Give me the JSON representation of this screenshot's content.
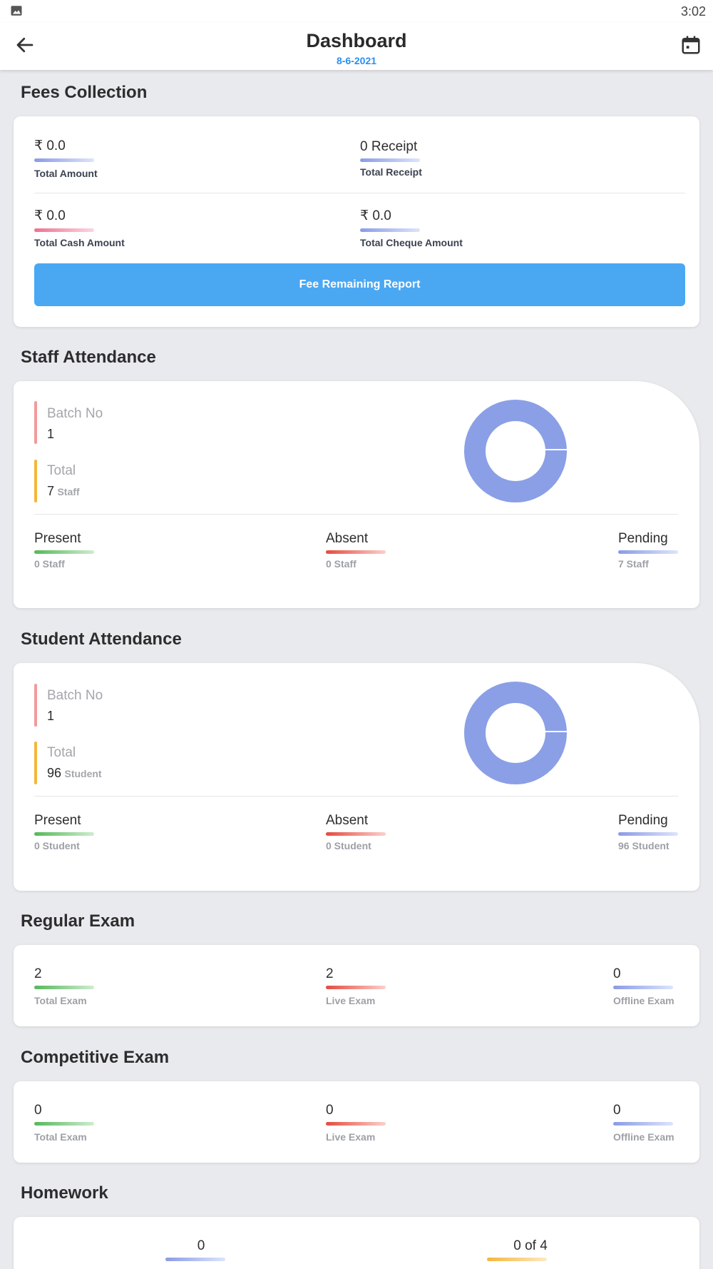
{
  "status_bar": {
    "time": "3:02",
    "image_icon": "image-icon"
  },
  "header": {
    "title": "Dashboard",
    "date": "8-6-2021",
    "back_icon": "arrow-left-icon",
    "calendar_icon": "calendar-icon"
  },
  "fees": {
    "section_title": "Fees Collection",
    "total_amount": {
      "value": "₹ 0.0",
      "label": "Total Amount"
    },
    "total_receipt": {
      "value": "0 Receipt",
      "label": "Total Receipt"
    },
    "total_cash": {
      "value": "₹ 0.0",
      "label": "Total Cash Amount"
    },
    "total_cheque": {
      "value": "₹ 0.0",
      "label": "Total Cheque Amount"
    },
    "button_label": "Fee Remaining Report"
  },
  "staff_attendance": {
    "section_title": "Staff Attendance",
    "batch_label": "Batch No",
    "batch_value": "1",
    "total_label": "Total",
    "total_value": "7",
    "total_unit": "Staff",
    "present_label": "Present",
    "present_value": "0 Staff",
    "absent_label": "Absent",
    "absent_value": "0 Staff",
    "pending_label": "Pending",
    "pending_value": "7 Staff",
    "chart_color": "#8a9fe6"
  },
  "student_attendance": {
    "section_title": "Student Attendance",
    "batch_label": "Batch No",
    "batch_value": "1",
    "total_label": "Total",
    "total_value": "96",
    "total_unit": "Student",
    "present_label": "Present",
    "present_value": "0 Student",
    "absent_label": "Absent",
    "absent_value": "0 Student",
    "pending_label": "Pending",
    "pending_value": "96 Student",
    "chart_color": "#8a9fe6"
  },
  "regular_exam": {
    "section_title": "Regular Exam",
    "total_value": "2",
    "total_label": "Total Exam",
    "live_value": "2",
    "live_label": "Live Exam",
    "offline_value": "0",
    "offline_label": "Offline Exam"
  },
  "competitive_exam": {
    "section_title": "Competitive Exam",
    "total_value": "0",
    "total_label": "Total Exam",
    "live_value": "0",
    "live_label": "Live Exam",
    "offline_value": "0",
    "offline_label": "Offline Exam"
  },
  "homework": {
    "section_title": "Homework",
    "left_value": "0",
    "right_value": "0 of 4"
  },
  "colors": {
    "accent_blue": "#4aa8f3",
    "date_blue": "#2b8ff0",
    "background": "#e9eaee"
  }
}
